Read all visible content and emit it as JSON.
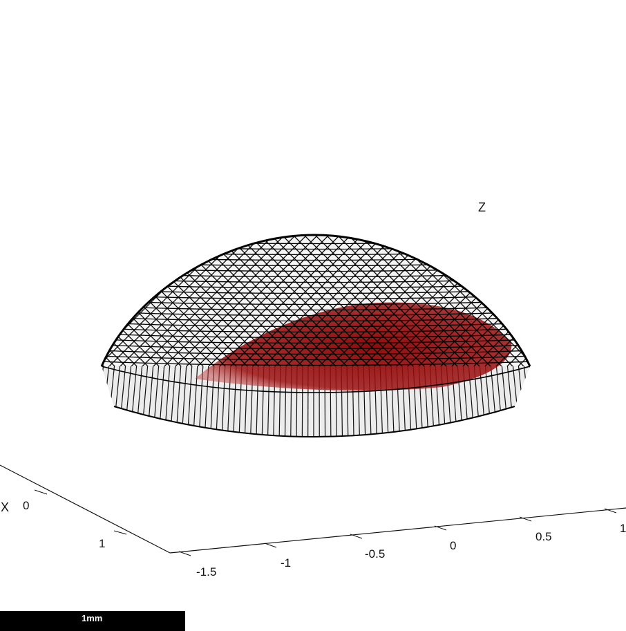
{
  "figure": {
    "labels": {
      "z_axis": "Z",
      "x_axis": "X"
    },
    "x_ticks": [
      "0",
      "1"
    ],
    "y_ticks": [
      "-1.5",
      "-1",
      "-0.5",
      "0",
      "0.5",
      "1"
    ],
    "scale_bar": "1mm",
    "colors": {
      "mesh_edge": "#000000",
      "mesh_face": "#ffffff",
      "inner_region": "#8b0000",
      "background": "#ffffff"
    }
  }
}
